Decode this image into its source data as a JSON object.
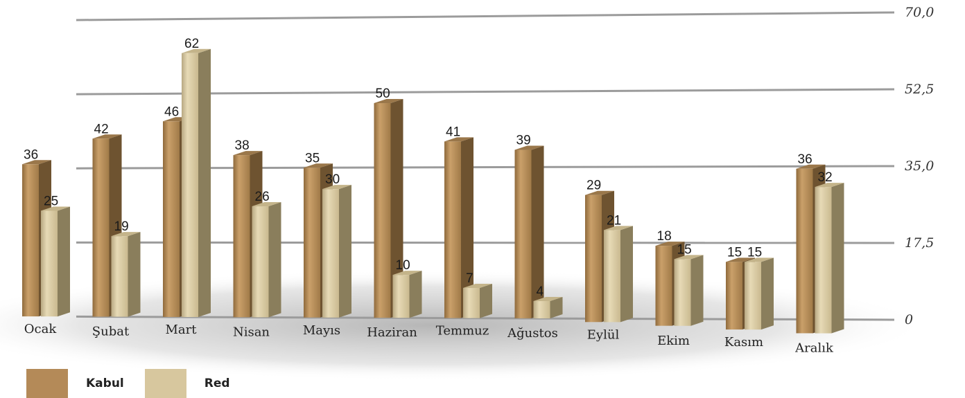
{
  "chart_data": {
    "type": "bar",
    "categories": [
      "Ocak",
      "Şubat",
      "Mart",
      "Nisan",
      "Mayıs",
      "Haziran",
      "Temmuz",
      "Ağustos",
      "Eylül",
      "Ekim",
      "Kasım",
      "Aralık"
    ],
    "series": [
      {
        "name": "Kabul",
        "values": [
          36,
          42,
          46,
          38,
          35,
          50,
          41,
          39,
          29,
          18,
          15,
          36
        ]
      },
      {
        "name": "Red",
        "values": [
          25,
          19,
          62,
          26,
          30,
          10,
          7,
          4,
          21,
          15,
          15,
          32
        ]
      }
    ],
    "value_labels": [
      [
        "36",
        "42",
        "46",
        "38",
        "35",
        "50",
        "41",
        "39",
        "29",
        "18",
        "15",
        "36"
      ],
      [
        "25",
        "19",
        "62",
        "26",
        "30",
        "10",
        "7",
        "4",
        "21",
        "15",
        "15",
        "32"
      ]
    ],
    "ylim": [
      0,
      70
    ],
    "yticks": [
      0,
      17.5,
      35,
      52.5,
      70
    ],
    "ytick_labels": [
      "0",
      "17,5",
      "35,0",
      "52,5",
      "70,0"
    ],
    "grid": true,
    "legend_position": "bottom-left",
    "three_d": true,
    "colors": {
      "Kabul": "#b48a58",
      "Red": "#d7c79e"
    }
  }
}
